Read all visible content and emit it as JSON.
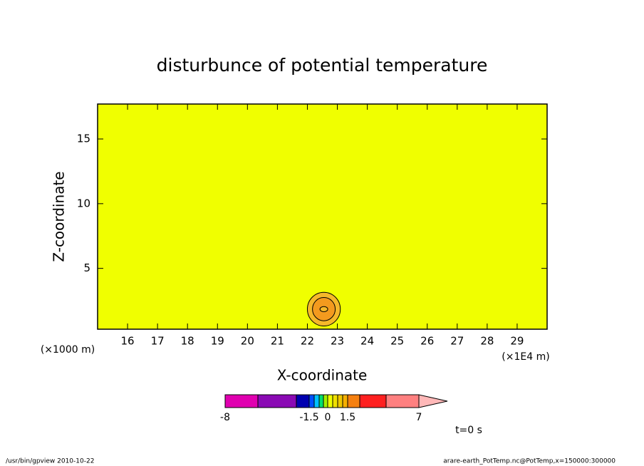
{
  "chart_data": {
    "type": "contour",
    "title": "disturbunce of potential temperature",
    "x_label": "X-coordinate",
    "y_label": "Z-coordinate",
    "x_unit_label": "(×1E4 m)",
    "y_unit_label": "(×1000 m)",
    "xlim": [
      15,
      30
    ],
    "ylim": [
      0.3,
      17.7
    ],
    "xticks": [
      16,
      17,
      18,
      19,
      20,
      21,
      22,
      23,
      24,
      25,
      26,
      27,
      28,
      29
    ],
    "yticks": [
      5,
      10,
      15
    ],
    "background_color": "#f0ff00",
    "contours": [
      {
        "x": 22.55,
        "y": 1.85,
        "rx": 0.55,
        "ry": 1.3,
        "color": "#f5b82a"
      },
      {
        "x": 22.55,
        "y": 1.85,
        "rx": 0.38,
        "ry": 0.9,
        "color": "#f39a1e"
      },
      {
        "x": 22.55,
        "y": 1.85,
        "rx": 0.13,
        "ry": 0.2,
        "color": "#f5b82a"
      }
    ],
    "colorbar": {
      "levels": [
        -8,
        -5,
        -3,
        -1.5,
        -1.125,
        -0.75,
        -0.375,
        0,
        0.375,
        0.75,
        1.125,
        1.5,
        3,
        5,
        7
      ],
      "colors": [
        "#e000b0",
        "#8a0ab4",
        "#0000b0",
        "#0050ff",
        "#00c0ff",
        "#00e070",
        "#a0f000",
        "#f0ff00",
        "#f0e000",
        "#f0c800",
        "#f5b000",
        "#f58010",
        "#ff2020",
        "#ff8080"
      ],
      "extend_color": "#ffb8b8",
      "ticks": [
        -8,
        -1.5,
        0,
        1.5,
        7
      ]
    },
    "time_label": "t=0 s",
    "footer_left": "/usr/bin/gpview  2010-10-22",
    "footer_right": "arare-earth_PotTemp.nc@PotTemp,x=150000:300000"
  }
}
